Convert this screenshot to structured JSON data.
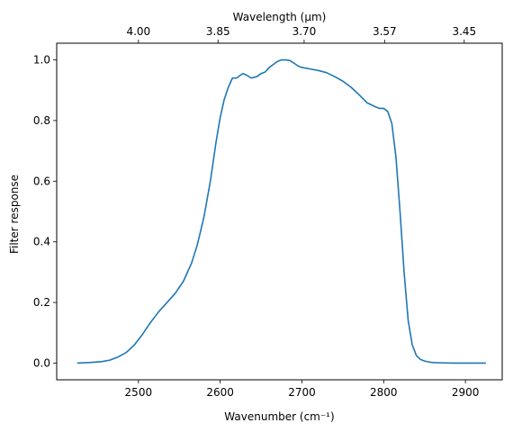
{
  "chart_data": {
    "type": "line",
    "xlabel": "Wavenumber (cm⁻¹)",
    "ylabel": "Filter response",
    "top_xlabel": "Wavelength (μm)",
    "xlim": [
      2400,
      2945
    ],
    "ylim": [
      -0.055,
      1.055
    ],
    "x_ticks": [
      2500,
      2600,
      2700,
      2800,
      2900
    ],
    "x_tick_labels": [
      "2500",
      "2600",
      "2700",
      "2800",
      "2900"
    ],
    "y_ticks": [
      0.0,
      0.2,
      0.4,
      0.6,
      0.8,
      1.0
    ],
    "y_tick_labels": [
      "0.0",
      "0.2",
      "0.4",
      "0.6",
      "0.8",
      "1.0"
    ],
    "top_ticks_wavelength_um": [
      4.0,
      3.85,
      3.7,
      3.57,
      3.45
    ],
    "top_tick_labels": [
      "4.00",
      "3.85",
      "3.70",
      "3.57",
      "3.45"
    ],
    "grid": false,
    "series": [
      {
        "color": "#1f77b4",
        "x": [
          2425,
          2440,
          2455,
          2465,
          2475,
          2485,
          2495,
          2505,
          2515,
          2525,
          2535,
          2545,
          2555,
          2565,
          2572,
          2580,
          2588,
          2595,
          2600,
          2605,
          2610,
          2615,
          2620,
          2625,
          2628,
          2632,
          2638,
          2645,
          2650,
          2655,
          2660,
          2665,
          2670,
          2675,
          2680,
          2685,
          2690,
          2695,
          2700,
          2710,
          2720,
          2730,
          2740,
          2750,
          2760,
          2770,
          2780,
          2790,
          2795,
          2800,
          2805,
          2810,
          2815,
          2820,
          2825,
          2830,
          2835,
          2840,
          2845,
          2850,
          2855,
          2860,
          2870,
          2885,
          2900,
          2925
        ],
        "y": [
          0.0,
          0.002,
          0.005,
          0.01,
          0.02,
          0.035,
          0.06,
          0.095,
          0.135,
          0.17,
          0.2,
          0.23,
          0.27,
          0.33,
          0.39,
          0.48,
          0.6,
          0.73,
          0.81,
          0.87,
          0.91,
          0.94,
          0.94,
          0.95,
          0.955,
          0.95,
          0.94,
          0.945,
          0.955,
          0.96,
          0.975,
          0.985,
          0.995,
          1.0,
          1.0,
          0.998,
          0.99,
          0.98,
          0.975,
          0.97,
          0.965,
          0.958,
          0.945,
          0.93,
          0.91,
          0.885,
          0.858,
          0.845,
          0.84,
          0.84,
          0.83,
          0.79,
          0.68,
          0.5,
          0.3,
          0.14,
          0.06,
          0.025,
          0.012,
          0.007,
          0.004,
          0.002,
          0.001,
          0.0,
          0.0,
          0.0
        ]
      }
    ]
  }
}
